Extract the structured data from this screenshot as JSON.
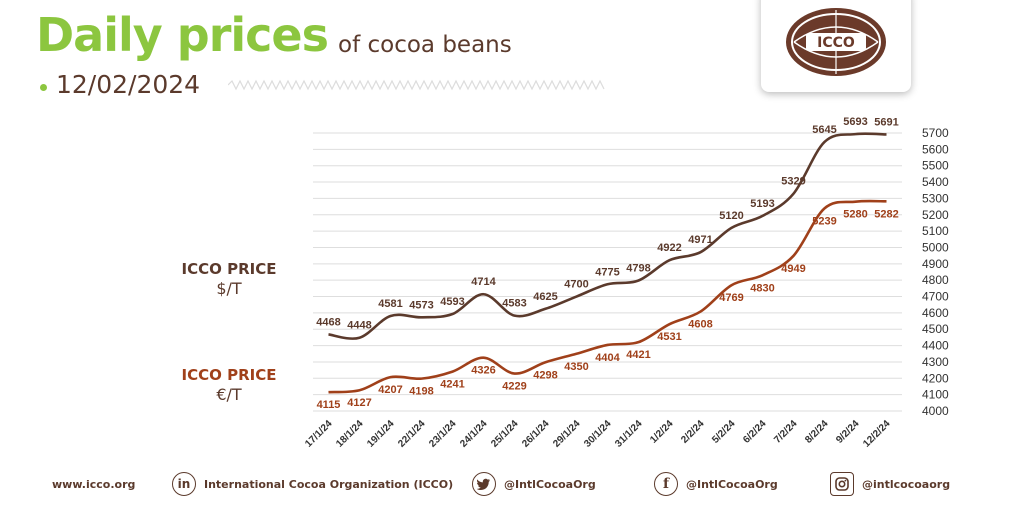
{
  "header": {
    "title_main": "Daily prices",
    "title_sub": "of cocoa beans",
    "date": "12/02/2024"
  },
  "logo": {
    "text": "ICCO"
  },
  "labels": {
    "usd_title": "ICCO PRICE",
    "usd_unit": "$/T",
    "eur_title": "ICCO PRICE",
    "eur_unit": "€/T"
  },
  "chart_data": {
    "type": "line",
    "categories": [
      "17/1/24",
      "18/1/24",
      "19/1/24",
      "22/1/24",
      "23/1/24",
      "24/1/24",
      "25/1/24",
      "26/1/24",
      "29/1/24",
      "30/1/24",
      "31/1/24",
      "1/2/24",
      "2/2/24",
      "5/2/24",
      "6/2/24",
      "7/2/24",
      "8/2/24",
      "9/2/24",
      "12/2/24"
    ],
    "series": [
      {
        "name": "ICCO PRICE $/T",
        "color": "#5b3a2c",
        "values": [
          4468,
          4448,
          4581,
          4573,
          4593,
          4714,
          4583,
          4625,
          4700,
          4775,
          4798,
          4922,
          4971,
          5120,
          5193,
          5329,
          5645,
          5693,
          5691
        ]
      },
      {
        "name": "ICCO PRICE €/T",
        "color": "#a0401a",
        "values": [
          4115,
          4127,
          4207,
          4198,
          4241,
          4326,
          4229,
          4298,
          4350,
          4404,
          4421,
          4531,
          4608,
          4769,
          4830,
          4949,
          5239,
          5280,
          5282
        ]
      }
    ],
    "ylim": [
      4000,
      5700
    ],
    "ytick_step": 100,
    "grid": true,
    "y_axis_side": "right"
  },
  "footer": {
    "website": "www.icco.org",
    "linkedin_icon": "linkedin-icon",
    "linkedin": "International Cocoa Organization (ICCO)",
    "twitter_icon": "twitter-icon",
    "twitter": "@IntlCocoaOrg",
    "facebook_icon": "facebook-icon",
    "facebook": "@IntlCocoaOrg",
    "instagram_icon": "instagram-icon",
    "instagram": "@intlcocoaorg"
  }
}
